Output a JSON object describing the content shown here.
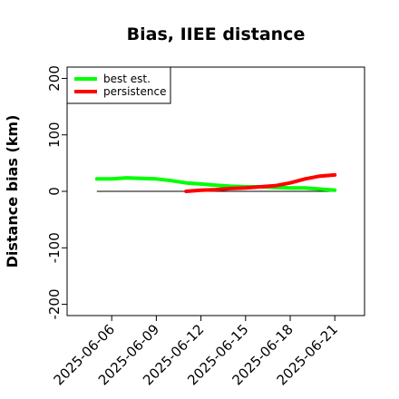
{
  "chart_data": {
    "type": "line",
    "title": "Bias, IIEE distance",
    "xlabel": "",
    "ylabel": "Distance bias (km)",
    "xlim": [
      "2025-06-03",
      "2025-06-23"
    ],
    "ylim": [
      -220,
      220
    ],
    "x_ticks": [
      "2025-06-06",
      "2025-06-09",
      "2025-06-12",
      "2025-06-15",
      "2025-06-18",
      "2025-06-21"
    ],
    "y_ticks": [
      -200,
      -100,
      0,
      100,
      200
    ],
    "legend_position": "top-left",
    "reference_line": {
      "y": 0,
      "x_from": "2025-06-05",
      "x_to": "2025-06-21",
      "color": "#000000"
    },
    "series": [
      {
        "name": "best est.",
        "color": "#00ff00",
        "x": [
          "2025-06-05",
          "2025-06-06",
          "2025-06-07",
          "2025-06-08",
          "2025-06-09",
          "2025-06-10",
          "2025-06-11",
          "2025-06-12",
          "2025-06-13",
          "2025-06-14",
          "2025-06-15",
          "2025-06-16",
          "2025-06-17",
          "2025-06-18",
          "2025-06-19",
          "2025-06-20",
          "2025-06-21"
        ],
        "values": [
          22,
          22,
          24,
          23,
          22,
          19,
          15,
          13,
          11,
          9,
          8,
          8,
          7,
          6,
          6,
          4,
          2
        ]
      },
      {
        "name": "persistence",
        "color": "#ff0000",
        "x": [
          "2025-06-11",
          "2025-06-12",
          "2025-06-13",
          "2025-06-14",
          "2025-06-15",
          "2025-06-16",
          "2025-06-17",
          "2025-06-18",
          "2025-06-19",
          "2025-06-20",
          "2025-06-21"
        ],
        "values": [
          0,
          2,
          3,
          5,
          6,
          8,
          10,
          15,
          22,
          27,
          29
        ]
      }
    ]
  }
}
